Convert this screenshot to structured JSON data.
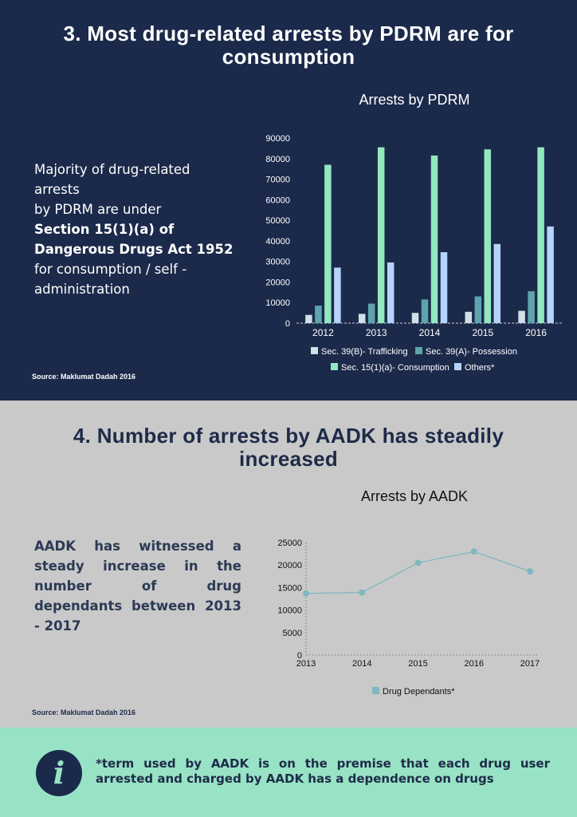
{
  "section1": {
    "heading": "3. Most drug-related arrests by PDRM are for consumption",
    "lead_line1": "Majority of drug-related arrests",
    "lead_line2": "by PDRM are under",
    "lead_bold": "Section 15(1)(a) of Dangerous Drugs Act 1952",
    "lead_line3": "for consumption / self -administration",
    "source": "Source: Maklumat Dadah 2016"
  },
  "section2": {
    "heading": "4. Number of arrests by AADK has steadily increased",
    "lead": "AADK has witnessed a steady increase in the number of drug dependants between 2013 - 2017",
    "source": "Source: Maklumat Dadah 2016"
  },
  "footnote": {
    "icon": "info-icon",
    "text": "*term used by AADK is on the premise that each drug user arrested and charged by AADK has a dependence on drugs"
  },
  "chart_data": [
    {
      "type": "bar",
      "title": "Arrests by PDRM",
      "categories": [
        "2012",
        "2013",
        "2014",
        "2015",
        "2016"
      ],
      "ylim": [
        0,
        90000
      ],
      "yticks": [
        0,
        10000,
        20000,
        30000,
        40000,
        50000,
        60000,
        70000,
        80000,
        90000
      ],
      "series": [
        {
          "name": "Sec. 39(B)- Trafficking",
          "color": "#cfe1e6",
          "values": [
            4000,
            4500,
            5000,
            5500,
            6000
          ]
        },
        {
          "name": "Sec. 39(A)- Possession",
          "color": "#5ea4ad",
          "values": [
            8500,
            9500,
            11500,
            13000,
            15500
          ]
        },
        {
          "name": "Sec. 15(1)(a)- Consumption",
          "color": "#93e8bf",
          "values": [
            77000,
            85500,
            81500,
            84500,
            85500
          ]
        },
        {
          "name": "Others*",
          "color": "#b5d3fb",
          "values": [
            27000,
            29500,
            34500,
            38500,
            47000
          ]
        }
      ],
      "legend_position": "bottom"
    },
    {
      "type": "line",
      "title": "Arrests by AADK",
      "x": [
        "2013",
        "2014",
        "2015",
        "2016",
        "2017"
      ],
      "ylim": [
        0,
        25000
      ],
      "yticks": [
        0,
        5000,
        10000,
        15000,
        20000,
        25000
      ],
      "series": [
        {
          "name": "Drug Dependants*",
          "color": "#7fb8c0",
          "values": [
            13700,
            13900,
            20500,
            23000,
            18600
          ]
        }
      ],
      "legend_position": "bottom"
    }
  ]
}
